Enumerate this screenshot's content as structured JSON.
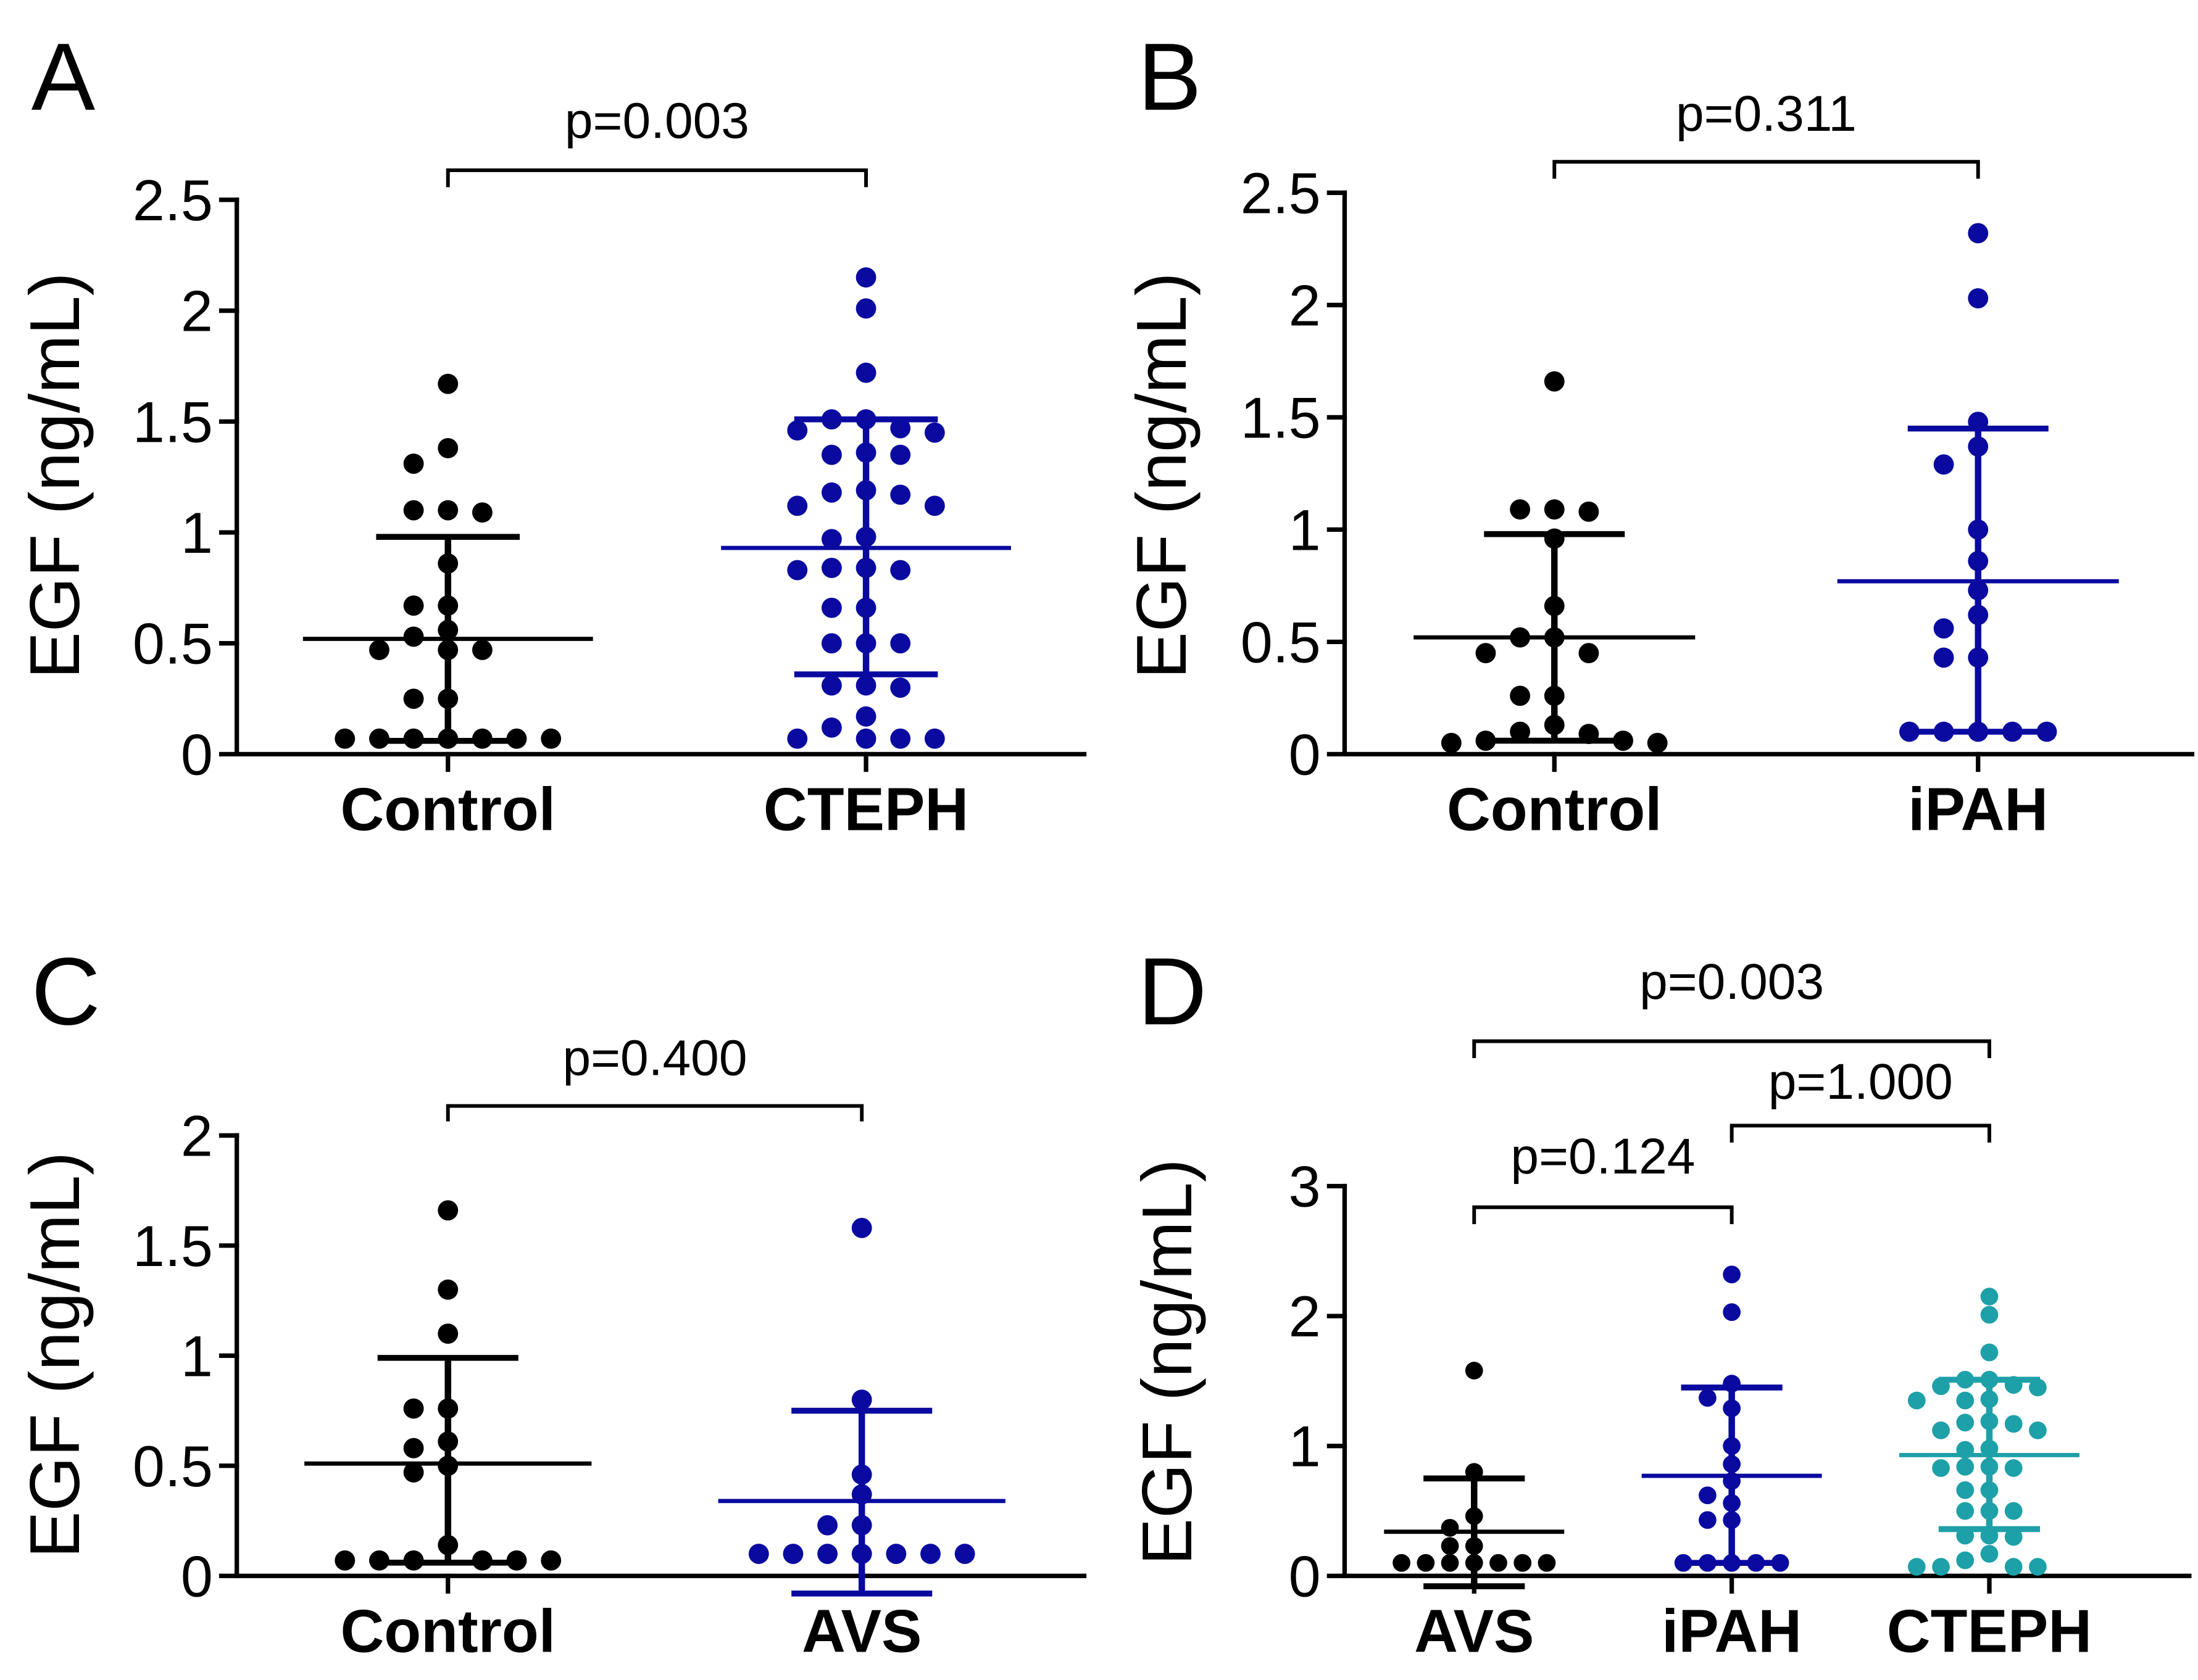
{
  "chart_data": [
    {
      "panel": "A",
      "type": "scatter",
      "ylabel": "EGF (ng/mL)",
      "ylim": [
        0,
        2.5
      ],
      "yticks": [
        0,
        0.5,
        1,
        1.5,
        2,
        2.5
      ],
      "ytick_labels": [
        "0",
        "0.5",
        "1",
        "1.5",
        "2",
        "2.5"
      ],
      "series": [
        {
          "name": "Control",
          "color": "#000000",
          "median": 0.52,
          "q1": 0.06,
          "q3": 0.98,
          "values": [
            1.67,
            1.38,
            1.31,
            1.1,
            1.1,
            1.09,
            0.86,
            0.67,
            0.67,
            0.56,
            0.53,
            0.47,
            0.47,
            0.47,
            0.25,
            0.25,
            0.07,
            0.07,
            0.07,
            0.07,
            0.07,
            0.07,
            0.07
          ]
        },
        {
          "name": "CTEPH",
          "color": "#0a0aa0",
          "median": 0.93,
          "q1": 0.36,
          "q3": 1.51,
          "values": [
            2.15,
            2.01,
            1.72,
            1.51,
            1.51,
            1.47,
            1.46,
            1.45,
            1.36,
            1.35,
            1.35,
            1.19,
            1.18,
            1.17,
            1.12,
            1.12,
            0.98,
            0.97,
            0.84,
            0.84,
            0.83,
            0.83,
            0.66,
            0.66,
            0.5,
            0.5,
            0.5,
            0.31,
            0.31,
            0.3,
            0.17,
            0.12,
            0.07,
            0.07,
            0.07,
            0.07
          ]
        }
      ],
      "comparisons": [
        {
          "between": [
            0,
            1
          ],
          "label": "p=0.003"
        }
      ]
    },
    {
      "panel": "B",
      "type": "scatter",
      "ylabel": "EGF (ng/mL)",
      "ylim": [
        0,
        2.5
      ],
      "yticks": [
        0,
        0.5,
        1,
        1.5,
        2,
        2.5
      ],
      "ytick_labels": [
        "0",
        "0.5",
        "1",
        "1.5",
        "2",
        "2.5"
      ],
      "series": [
        {
          "name": "Control",
          "color": "#000000",
          "median": 0.52,
          "q1": 0.06,
          "q3": 0.98,
          "values": [
            1.66,
            1.09,
            1.09,
            1.08,
            0.96,
            0.66,
            0.52,
            0.52,
            0.45,
            0.45,
            0.26,
            0.26,
            0.13,
            0.1,
            0.09,
            0.06,
            0.06,
            0.05,
            0.05
          ]
        },
        {
          "name": "iPAH",
          "color": "#0a0aa0",
          "median": 0.77,
          "q1": 0.1,
          "q3": 1.45,
          "values": [
            2.32,
            2.03,
            1.48,
            1.37,
            1.29,
            1.0,
            0.86,
            0.73,
            0.62,
            0.56,
            0.43,
            0.43,
            0.1,
            0.1,
            0.1,
            0.1,
            0.1
          ]
        }
      ],
      "comparisons": [
        {
          "between": [
            0,
            1
          ],
          "label": "p=0.311"
        }
      ]
    },
    {
      "panel": "C",
      "type": "scatter",
      "ylabel": "EGF (ng/mL)",
      "ylim": [
        0,
        2
      ],
      "yticks": [
        0,
        0.5,
        1,
        1.5,
        2
      ],
      "ytick_labels": [
        "0",
        "0.5",
        "1",
        "1.5",
        "2"
      ],
      "series": [
        {
          "name": "Control",
          "color": "#000000",
          "median": 0.51,
          "q1": 0.06,
          "q3": 0.99,
          "values": [
            1.66,
            1.3,
            1.1,
            0.76,
            0.76,
            0.61,
            0.58,
            0.5,
            0.47,
            0.14,
            0.07,
            0.07,
            0.07,
            0.07,
            0.07,
            0.07
          ]
        },
        {
          "name": "AVS",
          "color": "#0a0aa0",
          "median": 0.34,
          "q1": -0.08,
          "q3": 0.75,
          "values": [
            1.58,
            0.8,
            0.46,
            0.37,
            0.23,
            0.23,
            0.1,
            0.1,
            0.1,
            0.1,
            0.1,
            0.1,
            0.1
          ]
        }
      ],
      "comparisons": [
        {
          "between": [
            0,
            1
          ],
          "label": "p=0.400"
        }
      ]
    },
    {
      "panel": "D",
      "type": "scatter",
      "ylabel": "EGF (ng/mL)",
      "ylim": [
        0,
        3
      ],
      "yticks": [
        0,
        1,
        2,
        3
      ],
      "ytick_labels": [
        "0",
        "1",
        "2",
        "3"
      ],
      "series": [
        {
          "name": "AVS",
          "color": "#000000",
          "median": 0.34,
          "q1": -0.08,
          "q3": 0.75,
          "values": [
            1.58,
            0.8,
            0.46,
            0.37,
            0.23,
            0.23,
            0.1,
            0.1,
            0.1,
            0.1,
            0.1,
            0.1,
            0.1
          ]
        },
        {
          "name": "iPAH",
          "color": "#0a0aa0",
          "median": 0.77,
          "q1": 0.1,
          "q3": 1.45,
          "values": [
            2.32,
            2.03,
            1.48,
            1.37,
            1.29,
            1.0,
            0.86,
            0.73,
            0.62,
            0.56,
            0.43,
            0.43,
            0.1,
            0.1,
            0.1,
            0.1,
            0.1
          ]
        },
        {
          "name": "CTEPH",
          "color": "#1ea0a8",
          "median": 0.93,
          "q1": 0.36,
          "q3": 1.51,
          "values": [
            2.15,
            2.01,
            1.72,
            1.51,
            1.51,
            1.47,
            1.46,
            1.45,
            1.36,
            1.35,
            1.35,
            1.19,
            1.18,
            1.17,
            1.12,
            1.12,
            0.98,
            0.97,
            0.84,
            0.84,
            0.83,
            0.83,
            0.66,
            0.66,
            0.5,
            0.5,
            0.5,
            0.31,
            0.31,
            0.3,
            0.17,
            0.12,
            0.07,
            0.07,
            0.07,
            0.07
          ]
        }
      ],
      "comparisons": [
        {
          "between": [
            0,
            1
          ],
          "label": "p=0.124"
        },
        {
          "between": [
            1,
            2
          ],
          "label": "p=1.000"
        },
        {
          "between": [
            0,
            2
          ],
          "label": "p=0.003"
        }
      ]
    }
  ]
}
